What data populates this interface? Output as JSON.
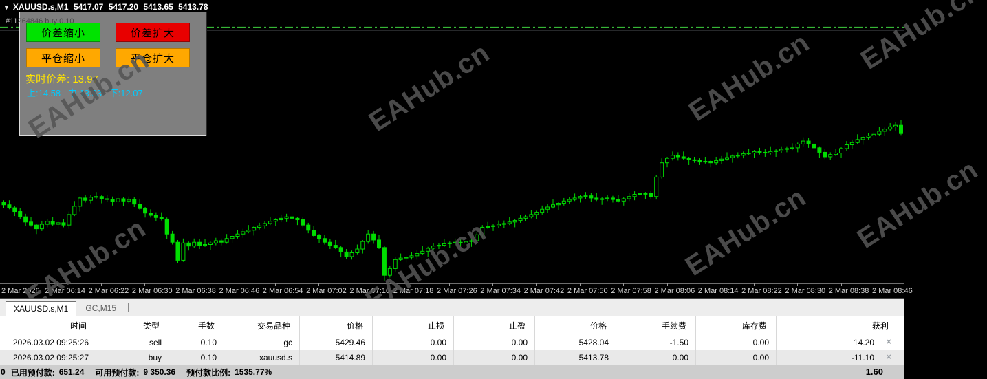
{
  "chart_header": {
    "collapse_icon": "▼",
    "symbol_period": "XAUUSD.s,M1",
    "ohlc": {
      "open": "5417.07",
      "high": "5417.20",
      "low": "5413.65",
      "close": "5413.78"
    },
    "position_label_lead": "#11",
    "position_label_rest": "264846 buy 0.10"
  },
  "spread_panel": {
    "buttons": [
      {
        "id": "spread-shrink",
        "label": "价差缩小",
        "color": "#00e300"
      },
      {
        "id": "spread-expand",
        "label": "价差扩大",
        "color": "#e80000"
      },
      {
        "id": "close-shrink",
        "label": "平仓缩小",
        "color": "#ffa800"
      },
      {
        "id": "close-expand",
        "label": "平仓扩大",
        "color": "#ffa800"
      }
    ],
    "spread_label": "实时价差:",
    "spread_value": "13.97",
    "levels": {
      "up_label": "上:",
      "up": "14.58",
      "middle_label": "中:",
      "middle": "13.33",
      "down_label": "下:",
      "down": "12.07"
    },
    "spread_color": "#ffe400",
    "levels_color": "#00ccff",
    "panel_bg": "#7f7f7f"
  },
  "watermark": {
    "text": "EAHub.cn"
  },
  "chart_data": {
    "type": "candlestick",
    "symbol": "XAUUSD.s",
    "timeframe": "M1",
    "title": "XAUUSD.s,M1 5417.07 5417.20 5413.65 5413.78",
    "bull_style": "hollow",
    "bear_style": "filled",
    "candle_color": "#00dd00",
    "background": "#000000",
    "grid": false,
    "ylim": [
      5393.8,
      5431.6
    ],
    "open_first": 5404.6,
    "closes": [
      5404.3,
      5403.9,
      5403.4,
      5402.7,
      5402.0,
      5401.6,
      5401.1,
      5401.7,
      5402.1,
      5401.7,
      5401.9,
      5401.6,
      5403.0,
      5404.1,
      5405.2,
      5404.9,
      5405.3,
      5405.4,
      5405.1,
      5405.0,
      5404.7,
      5405.1,
      5404.8,
      5405.0,
      5404.4,
      5403.8,
      5403.2,
      5402.9,
      5402.6,
      5402.4,
      5400.4,
      5399.3,
      5396.9,
      5399.2,
      5398.8,
      5399.3,
      5398.9,
      5399.0,
      5399.2,
      5399.5,
      5399.3,
      5399.8,
      5400.1,
      5400.4,
      5400.7,
      5400.9,
      5401.3,
      5401.5,
      5401.8,
      5402.1,
      5402.3,
      5402.5,
      5402.7,
      5402.5,
      5402.3,
      5401.6,
      5400.9,
      5400.2,
      5399.8,
      5399.3,
      5398.9,
      5398.6,
      5398.0,
      5397.4,
      5397.9,
      5398.4,
      5399.4,
      5400.4,
      5399.6,
      5398.6,
      5394.9,
      5395.8,
      5397.0,
      5397.2,
      5397.3,
      5397.5,
      5397.8,
      5398.1,
      5398.5,
      5398.8,
      5398.9,
      5399.1,
      5399.2,
      5399.3,
      5399.2,
      5399.4,
      5399.5,
      5400.3,
      5401.3,
      5401.4,
      5401.5,
      5401.7,
      5401.8,
      5402.0,
      5402.2,
      5402.5,
      5402.7,
      5403.0,
      5403.3,
      5403.7,
      5404.0,
      5404.3,
      5404.5,
      5404.8,
      5405.0,
      5405.2,
      5405.4,
      5405.5,
      5405.2,
      5405.0,
      5405.1,
      5405.2,
      5405.0,
      5404.8,
      5405.1,
      5405.4,
      5405.7,
      5405.8,
      5405.8,
      5405.4,
      5408.0,
      5409.9,
      5410.5,
      5410.9,
      5410.7,
      5410.5,
      5410.3,
      5410.2,
      5410.0,
      5410.1,
      5409.9,
      5410.2,
      5410.4,
      5410.6,
      5410.8,
      5410.9,
      5411.1,
      5411.2,
      5411.4,
      5411.3,
      5411.2,
      5411.4,
      5411.5,
      5411.7,
      5411.8,
      5411.9,
      5412.4,
      5412.8,
      5412.4,
      5411.9,
      5411.3,
      5410.7,
      5411.0,
      5411.2,
      5411.8,
      5412.3,
      5412.6,
      5413.0,
      5413.3,
      5413.5,
      5413.7,
      5414.1,
      5414.4,
      5414.7,
      5414.9,
      5413.8
    ],
    "wick_up_pattern": [
      0.3,
      0.6,
      0.2,
      0.5,
      0.4,
      0.7,
      0.2,
      0.4
    ],
    "wick_down_pattern": [
      0.4,
      0.2,
      0.6,
      0.3,
      0.5,
      0.2,
      0.7,
      0.3
    ],
    "overlay_lines": [
      {
        "price": 5428.0,
        "style": "dash-dot",
        "color": "#3ecf3e"
      },
      {
        "price": 5427.6,
        "style": "solid",
        "color": "#9aa0a6"
      }
    ],
    "x_tick_labels": [
      "2 Mar 2026",
      "2 Mar 06:14",
      "2 Mar 06:22",
      "2 Mar 06:30",
      "2 Mar 06:38",
      "2 Mar 06:46",
      "2 Mar 06:54",
      "2 Mar 07:02",
      "2 Mar 07:10",
      "2 Mar 07:18",
      "2 Mar 07:26",
      "2 Mar 07:34",
      "2 Mar 07:42",
      "2 Mar 07:50",
      "2 Mar 07:58",
      "2 Mar 08:06",
      "2 Mar 08:14",
      "2 Mar 08:22",
      "2 Mar 08:30",
      "2 Mar 08:38",
      "2 Mar 08:46"
    ]
  },
  "tabs": {
    "items": [
      {
        "label": "XAUUSD.s,M1",
        "active": true
      },
      {
        "label": "GC,M15",
        "active": false
      }
    ]
  },
  "trades": {
    "columns": [
      "时间",
      "类型",
      "手数",
      "交易品种",
      "价格",
      "止损",
      "止盈",
      "价格",
      "手续费",
      "库存费",
      "获利"
    ],
    "close_icon": "×",
    "rows": [
      {
        "cells": [
          "2026.03.02 09:25:26",
          "sell",
          "0.10",
          "gc",
          "5429.46",
          "0.00",
          "0.00",
          "5428.04",
          "-1.50",
          "0.00",
          "14.20"
        ]
      },
      {
        "cells": [
          "2026.03.02 09:25:27",
          "buy",
          "0.10",
          "xauusd.s",
          "5414.89",
          "0.00",
          "0.00",
          "5413.78",
          "0.00",
          "0.00",
          "-11.10"
        ]
      }
    ]
  },
  "status_bar": {
    "left_clip": "0",
    "used_margin_label": "已用预付款:",
    "used_margin": "651.24",
    "free_margin_label": "可用预付款:",
    "free_margin": "9 350.36",
    "margin_level_label": "预付款比例:",
    "margin_level": "1535.77%",
    "total_profit": "1.60"
  }
}
